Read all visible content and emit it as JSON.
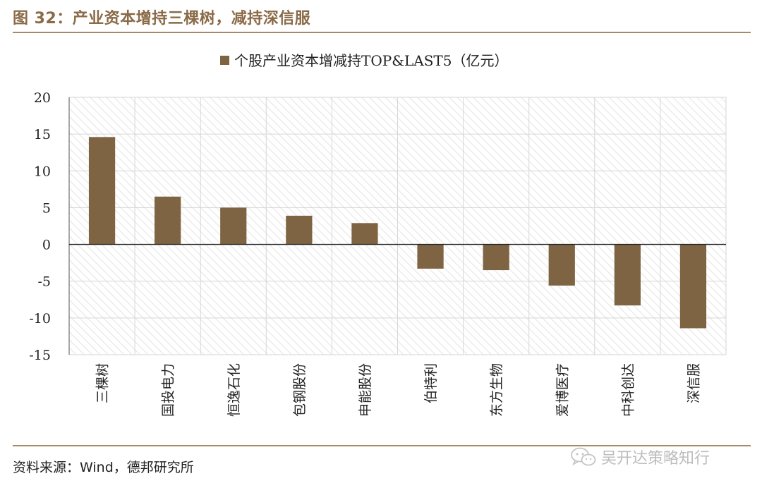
{
  "figure": {
    "title": "图 32：产业资本增持三棵树，减持深信服",
    "source": "资料来源：Wind，德邦研究所",
    "watermark": "吴开达策略知行",
    "watermark_icon": "wechat-icon"
  },
  "colors": {
    "bar": "#7f6443",
    "title": "#8a6a47",
    "rule": "#a68a68",
    "grid": "#d6d6d6",
    "hatch": "#ececec"
  },
  "chart_data": {
    "type": "bar",
    "title": "",
    "xlabel": "",
    "ylabel": "",
    "ylim": [
      -15,
      20
    ],
    "yticks": [
      20,
      15,
      10,
      5,
      0,
      -5,
      -10,
      -15
    ],
    "grid": true,
    "legend_position": "top-center",
    "categories": [
      "三棵树",
      "国投电力",
      "恒逸石化",
      "包钢股份",
      "申能股份",
      "伯特利",
      "东方生物",
      "爱博医疗",
      "中科创达",
      "深信服"
    ],
    "series": [
      {
        "name": "个股产业资本增减持TOP&LAST5（亿元）",
        "values": [
          14.6,
          6.5,
          5.0,
          3.9,
          2.9,
          -3.3,
          -3.5,
          -5.6,
          -8.3,
          -11.4
        ]
      }
    ]
  }
}
